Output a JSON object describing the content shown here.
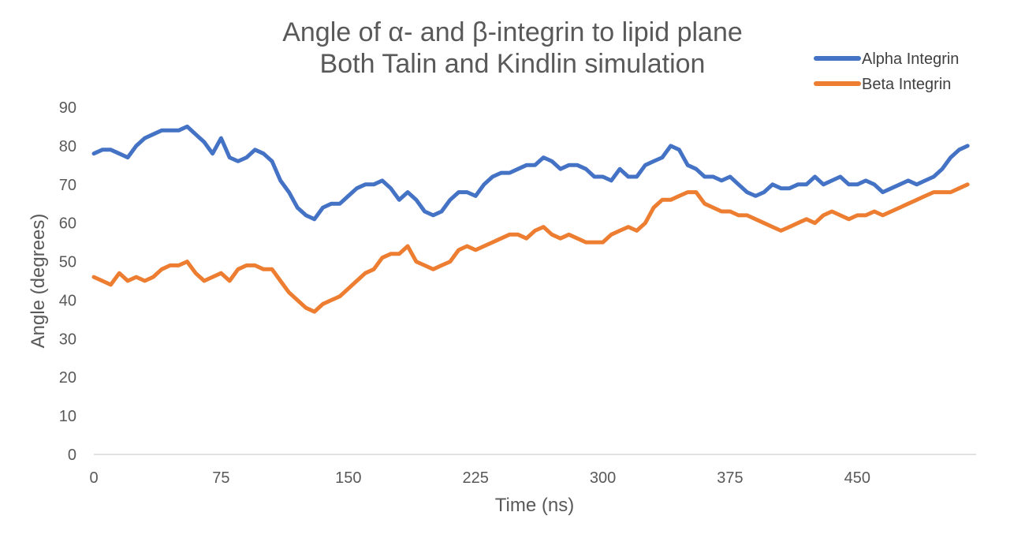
{
  "chart_data": {
    "type": "line",
    "title": "Angle of α- and β-integrin to lipid plane",
    "subtitle": "Both Talin and Kindlin simulation",
    "xlabel": "Time (ns)",
    "ylabel": "Angle (degrees)",
    "xlim": [
      0,
      520
    ],
    "ylim": [
      0,
      90
    ],
    "xticks": [
      0,
      75,
      150,
      225,
      300,
      375,
      450
    ],
    "yticks": [
      0,
      10,
      20,
      30,
      40,
      50,
      60,
      70,
      80,
      90
    ],
    "grid": false,
    "legend_position": "top-right",
    "series": [
      {
        "name": "Alpha Integrin",
        "color": "#4472C4",
        "x": [
          0,
          5,
          10,
          15,
          20,
          25,
          30,
          35,
          40,
          45,
          50,
          55,
          60,
          65,
          70,
          75,
          80,
          85,
          90,
          95,
          100,
          105,
          110,
          115,
          120,
          125,
          130,
          135,
          140,
          145,
          150,
          155,
          160,
          165,
          170,
          175,
          180,
          185,
          190,
          195,
          200,
          205,
          210,
          215,
          220,
          225,
          230,
          235,
          240,
          245,
          250,
          255,
          260,
          265,
          270,
          275,
          280,
          285,
          290,
          295,
          300,
          305,
          310,
          315,
          320,
          325,
          330,
          335,
          340,
          345,
          350,
          355,
          360,
          365,
          370,
          375,
          380,
          385,
          390,
          395,
          400,
          405,
          410,
          415,
          420,
          425,
          430,
          435,
          440,
          445,
          450,
          455,
          460,
          465,
          470,
          475,
          480,
          485,
          490,
          495,
          500,
          505,
          510,
          515
        ],
        "values": [
          78,
          79,
          79,
          78,
          77,
          80,
          82,
          83,
          84,
          84,
          84,
          85,
          83,
          81,
          78,
          82,
          77,
          76,
          77,
          79,
          78,
          76,
          71,
          68,
          64,
          62,
          61,
          64,
          65,
          65,
          67,
          69,
          70,
          70,
          71,
          69,
          66,
          68,
          66,
          63,
          62,
          63,
          66,
          68,
          68,
          67,
          70,
          72,
          73,
          73,
          74,
          75,
          75,
          77,
          76,
          74,
          75,
          75,
          74,
          72,
          72,
          71,
          74,
          72,
          72,
          75,
          76,
          77,
          80,
          79,
          75,
          74,
          72,
          72,
          71,
          72,
          70,
          68,
          67,
          68,
          70,
          69,
          69,
          70,
          70,
          72,
          70,
          71,
          72,
          70,
          70,
          71,
          70,
          68,
          69,
          70,
          71,
          70,
          71,
          72,
          74,
          77,
          79,
          80
        ]
      },
      {
        "name": "Beta Integrin",
        "color": "#ED7D31",
        "x": [
          0,
          5,
          10,
          15,
          20,
          25,
          30,
          35,
          40,
          45,
          50,
          55,
          60,
          65,
          70,
          75,
          80,
          85,
          90,
          95,
          100,
          105,
          110,
          115,
          120,
          125,
          130,
          135,
          140,
          145,
          150,
          155,
          160,
          165,
          170,
          175,
          180,
          185,
          190,
          195,
          200,
          205,
          210,
          215,
          220,
          225,
          230,
          235,
          240,
          245,
          250,
          255,
          260,
          265,
          270,
          275,
          280,
          285,
          290,
          295,
          300,
          305,
          310,
          315,
          320,
          325,
          330,
          335,
          340,
          345,
          350,
          355,
          360,
          365,
          370,
          375,
          380,
          385,
          390,
          395,
          400,
          405,
          410,
          415,
          420,
          425,
          430,
          435,
          440,
          445,
          450,
          455,
          460,
          465,
          470,
          475,
          480,
          485,
          490,
          495,
          500,
          505,
          510,
          515
        ],
        "values": [
          46,
          45,
          44,
          47,
          45,
          46,
          45,
          46,
          48,
          49,
          49,
          50,
          47,
          45,
          46,
          47,
          45,
          48,
          49,
          49,
          48,
          48,
          45,
          42,
          40,
          38,
          37,
          39,
          40,
          41,
          43,
          45,
          47,
          48,
          51,
          52,
          52,
          54,
          50,
          49,
          48,
          49,
          50,
          53,
          54,
          53,
          54,
          55,
          56,
          57,
          57,
          56,
          58,
          59,
          57,
          56,
          57,
          56,
          55,
          55,
          55,
          57,
          58,
          59,
          58,
          60,
          64,
          66,
          66,
          67,
          68,
          68,
          65,
          64,
          63,
          63,
          62,
          62,
          61,
          60,
          59,
          58,
          59,
          60,
          61,
          60,
          62,
          63,
          62,
          61,
          62,
          62,
          63,
          62,
          63,
          64,
          65,
          66,
          67,
          68,
          68,
          68,
          69,
          70
        ]
      }
    ]
  }
}
